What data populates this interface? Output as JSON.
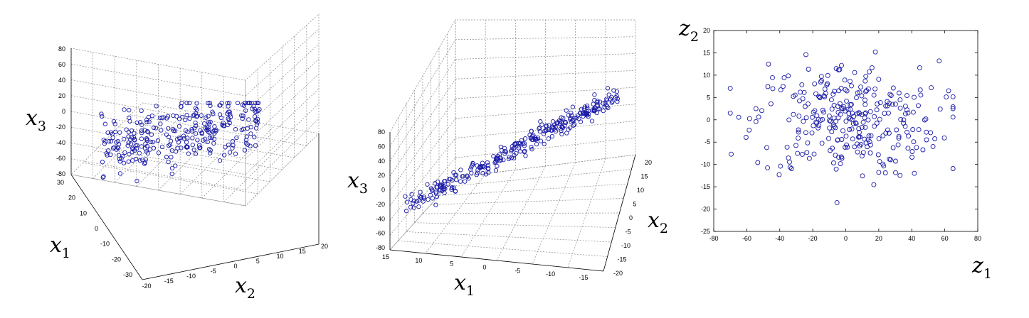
{
  "chart_data": [
    {
      "type": "scatter",
      "kind": "3d",
      "view": "original data, oblique view",
      "x1_ticks": [
        30,
        20,
        10,
        0,
        -10,
        -20,
        -30
      ],
      "x2_ticks": [
        -20,
        -15,
        -10,
        -5,
        0,
        5,
        10,
        15,
        20
      ],
      "x3_ticks": [
        80,
        60,
        40,
        20,
        0,
        -20,
        -40,
        -60,
        -80
      ],
      "x1_label": "x",
      "x1_sub": "1",
      "x2_label": "x",
      "x2_sub": "2",
      "x3_label": "x",
      "x3_sub": "3",
      "xlim": [
        -30,
        30
      ],
      "ylim": [
        -20,
        20
      ],
      "zlim": [
        -80,
        80
      ],
      "grid": true,
      "marker": "o",
      "color": "#1a1aa8",
      "n_points": 300,
      "distribution": "points lie near a tilted plane, spread widely in x1 and x2"
    },
    {
      "type": "scatter",
      "kind": "3d",
      "view": "same data viewed edge-on to the plane",
      "x1_ticks": [
        15,
        10,
        5,
        0,
        -5,
        -10,
        -15
      ],
      "x2_ticks": [
        20,
        15,
        10,
        5,
        0,
        -5,
        -10,
        -15,
        -20
      ],
      "x3_ticks": [
        80,
        60,
        40,
        20,
        0,
        -20,
        -40,
        -60,
        -80
      ],
      "x1_label": "x",
      "x1_sub": "1",
      "x2_label": "x",
      "x2_sub": "2",
      "x3_label": "x",
      "x3_sub": "3",
      "xlim": [
        -15,
        15
      ],
      "ylim": [
        -20,
        20
      ],
      "zlim": [
        -80,
        80
      ],
      "grid": true,
      "marker": "o",
      "color": "#1a1aa8",
      "n_points": 300,
      "distribution": "points form a thin diagonal band"
    },
    {
      "type": "scatter",
      "kind": "2d",
      "view": "projection onto the two principal components",
      "x_label": "z",
      "x_sub": "1",
      "y_label": "z",
      "y_sub": "2",
      "xlim": [
        -80,
        80
      ],
      "ylim": [
        -25,
        20
      ],
      "x_ticks": [
        -80,
        -60,
        -40,
        -20,
        0,
        20,
        40,
        60,
        80
      ],
      "y_ticks": [
        20,
        15,
        10,
        5,
        0,
        -5,
        -10,
        -15,
        -20,
        -25
      ],
      "grid": false,
      "marker": "o",
      "color": "#1a1aa8",
      "n_points": 300,
      "distribution": "z1 roughly -70 to 65, z2 roughly -20 to 16"
    }
  ]
}
